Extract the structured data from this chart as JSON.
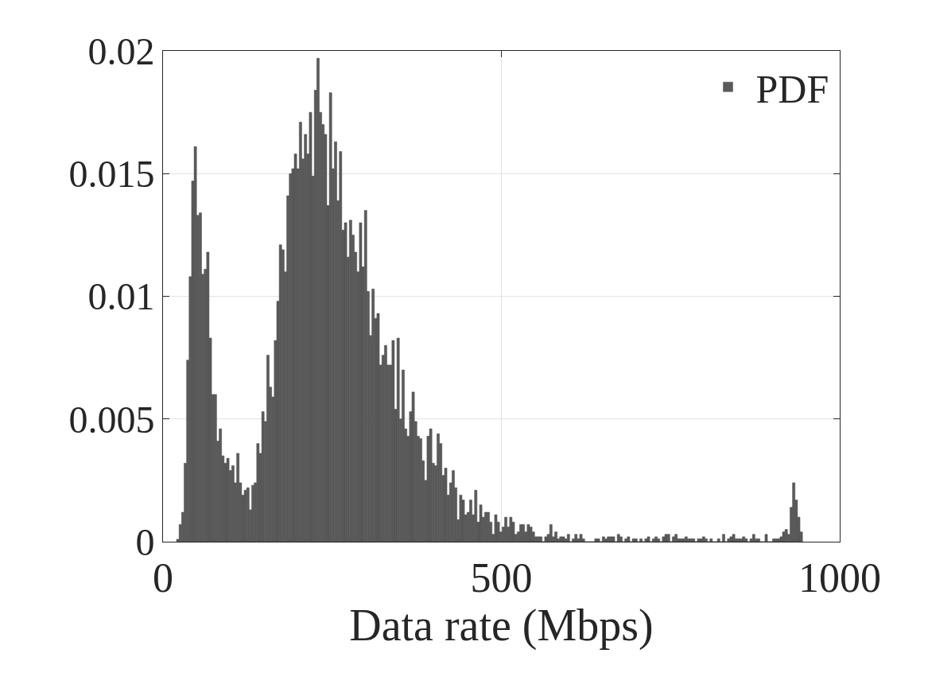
{
  "chart_data": {
    "type": "histogram",
    "xlabel": "Data rate (Mbps)",
    "xlim": [
      0,
      1000
    ],
    "xticks": [
      0,
      500,
      1000
    ],
    "ylim": [
      0,
      0.02
    ],
    "yticks": [
      0,
      0.005,
      0.01,
      0.015,
      0.02
    ],
    "grid": true,
    "legend": "top right",
    "bins": [
      20,
      23.7,
      27.4,
      31.1,
      34.8,
      38.5,
      42.2,
      45.9,
      49.6,
      53.3,
      57,
      60.7,
      64.4,
      68.1,
      71.8,
      75.5,
      79.2,
      82.9,
      86.6,
      90.3,
      94,
      97.7,
      101.4,
      105.1,
      108.8,
      112.5,
      116.2,
      119.9,
      123.6,
      127.3,
      131,
      134.7,
      138.4,
      142.1,
      145.8,
      149.5,
      153.2,
      156.9,
      160.6,
      164.3,
      168,
      171.7,
      175.4,
      179.1,
      182.8,
      186.5,
      190.2,
      193.9,
      197.6,
      201.3,
      205,
      208.7,
      212.4,
      216.1,
      219.8,
      223.5,
      227.2,
      230.9,
      234.6,
      238.3,
      242,
      245.7,
      249.4,
      253.1,
      256.8,
      260.5,
      264.2,
      267.9,
      271.6,
      275.3,
      279,
      282.7,
      286.4,
      290.1,
      293.8,
      297.5,
      301.2,
      304.9,
      308.6,
      312.3,
      316,
      319.7,
      323.4,
      327.1,
      330.8,
      334.5,
      338.2,
      341.9,
      345.6,
      349.3,
      353,
      356.7,
      360.4,
      364.1,
      367.8,
      371.5,
      375.2,
      378.9,
      382.6,
      386.3,
      390,
      393.7,
      397.4,
      401.1,
      404.8,
      408.5,
      412.2,
      415.9,
      419.6,
      423.3,
      427,
      430.7,
      434.4,
      438.1,
      441.8,
      445.5,
      449.2,
      452.9,
      456.6,
      460.3,
      464,
      467.7,
      471.4,
      475.1,
      478.8,
      482.5,
      486.2,
      489.9,
      493.6,
      497.3,
      501,
      504.7,
      508.4,
      512.1,
      515.8,
      519.5,
      523.2,
      526.9,
      530.6,
      534.3,
      538,
      541.7,
      545.4,
      549.1,
      552.8,
      556.5,
      560.2,
      563.9,
      567.6,
      571.3,
      575,
      578.7,
      582.4,
      586.1,
      589.8,
      593.5,
      597.2,
      600.9,
      604.6,
      608.3,
      612,
      615.7,
      619.4,
      623.1,
      626.8,
      630.5,
      634.2,
      637.9,
      641.6,
      645.3,
      649,
      652.7,
      656.4,
      660.1,
      663.8,
      667.5,
      671.2,
      674.9,
      678.6,
      682.3,
      686,
      689.7,
      693.4,
      697.1,
      700.8,
      704.5,
      708.2,
      711.9,
      715.6,
      719.3,
      723,
      726.7,
      730.4,
      734.1,
      737.8,
      741.5,
      745.2,
      748.9,
      752.6,
      756.3,
      760,
      763.7,
      767.4,
      771.1,
      774.8,
      778.5,
      782.2,
      785.9,
      789.6,
      793.3,
      797,
      800.7,
      804.4,
      808.1,
      811.8,
      815.5,
      819.2,
      822.9,
      826.6,
      830.3,
      834,
      837.7,
      841.4,
      845.1,
      848.8,
      852.5,
      856.2,
      859.9,
      863.6,
      867.3,
      871,
      874.7,
      878.4,
      882.1,
      885.8,
      889.5,
      893.2,
      896.9,
      900.6,
      904.3,
      908,
      911.7,
      915.4,
      919.1,
      922.8,
      926.5,
      930.2,
      933.9,
      937.6,
      941.3,
      945
    ],
    "series": [
      {
        "name": "PDF",
        "color": "#5a5a5a",
        "values": [
          0.0001,
          0.0007,
          0.0012,
          0.0032,
          0.0074,
          0.0108,
          0.0147,
          0.0161,
          0.0133,
          0.0134,
          0.0109,
          0.0111,
          0.0118,
          0.0083,
          0.006,
          0.006,
          0.0041,
          0.0046,
          0.0035,
          0.0032,
          0.0034,
          0.0029,
          0.0031,
          0.0024,
          0.0036,
          0.0024,
          0.0019,
          0.0021,
          0.0022,
          0.0013,
          0.0023,
          0.0024,
          0.004,
          0.0036,
          0.0053,
          0.0049,
          0.0076,
          0.0063,
          0.0059,
          0.0082,
          0.0098,
          0.0121,
          0.0119,
          0.011,
          0.0141,
          0.015,
          0.0152,
          0.0158,
          0.0152,
          0.0171,
          0.0156,
          0.0166,
          0.0158,
          0.0175,
          0.0149,
          0.0184,
          0.0197,
          0.0175,
          0.017,
          0.0166,
          0.0137,
          0.0183,
          0.0152,
          0.0163,
          0.0139,
          0.0159,
          0.0127,
          0.013,
          0.0116,
          0.0131,
          0.0125,
          0.0118,
          0.011,
          0.013,
          0.0112,
          0.0135,
          0.0102,
          0.0084,
          0.0103,
          0.0091,
          0.0093,
          0.0072,
          0.0076,
          0.008,
          0.0072,
          0.0072,
          0.0082,
          0.0054,
          0.0083,
          0.005,
          0.007,
          0.0046,
          0.0043,
          0.0053,
          0.0061,
          0.0049,
          0.0043,
          0.0042,
          0.0033,
          0.0025,
          0.0043,
          0.0046,
          0.0032,
          0.0031,
          0.0044,
          0.004,
          0.0027,
          0.003,
          0.0019,
          0.0024,
          0.0029,
          0.0022,
          0.0009,
          0.0019,
          0.0017,
          0.0011,
          0.0012,
          0.0017,
          0.0011,
          0.0021,
          0.0008,
          0.0015,
          0.001,
          0.0012,
          0.0012,
          0.0008,
          0.0003,
          0.0011,
          0.0008,
          0.0004,
          0.0006,
          0.001,
          0.0006,
          0.001,
          0.0008,
          0.0003,
          0.0004,
          0.0007,
          0.0007,
          0.0004,
          0.0007,
          0.0006,
          0.0004,
          0.0002,
          0.0002,
          0.0002,
          0,
          0.0002,
          0.0003,
          0.0007,
          0.0002,
          0.0004,
          0.00012,
          0.0002,
          0.0002,
          0.00012,
          0.0003,
          0,
          0.00012,
          0.0003,
          0.00012,
          0.0003,
          0.00012,
          0,
          0,
          0,
          0,
          0.00012,
          0.00012,
          0,
          0.0002,
          0.00012,
          0.0002,
          0.0002,
          0.0002,
          0,
          0.0003,
          0.0002,
          0,
          0.00012,
          0.0002,
          0,
          0.00012,
          0.00012,
          0,
          0.00012,
          0,
          0.00012,
          0.0002,
          0,
          0.00012,
          0.0002,
          0.00012,
          0,
          0.0002,
          0.0003,
          0.0003,
          0,
          0.0002,
          0.0003,
          0.00012,
          0.00012,
          0.00012,
          0.0002,
          0.00012,
          0.00012,
          0.00012,
          0,
          0.00012,
          0.00012,
          0.0002,
          0.00012,
          0,
          0.00012,
          0,
          0,
          0.00012,
          0,
          0.0003,
          0,
          0.00012,
          0.0002,
          0.0003,
          0.00012,
          0.00012,
          0.00012,
          0.0002,
          0.00012,
          0,
          0.00012,
          0.0003,
          0.00012,
          0.00012,
          0,
          0,
          0.0003,
          0,
          0,
          0.00012,
          0.00012,
          0.00012,
          0.0002,
          0.0004,
          0.0005,
          0.0003,
          0.0014,
          0.0024,
          0.0017,
          0.001,
          0.0004
        ]
      }
    ]
  }
}
